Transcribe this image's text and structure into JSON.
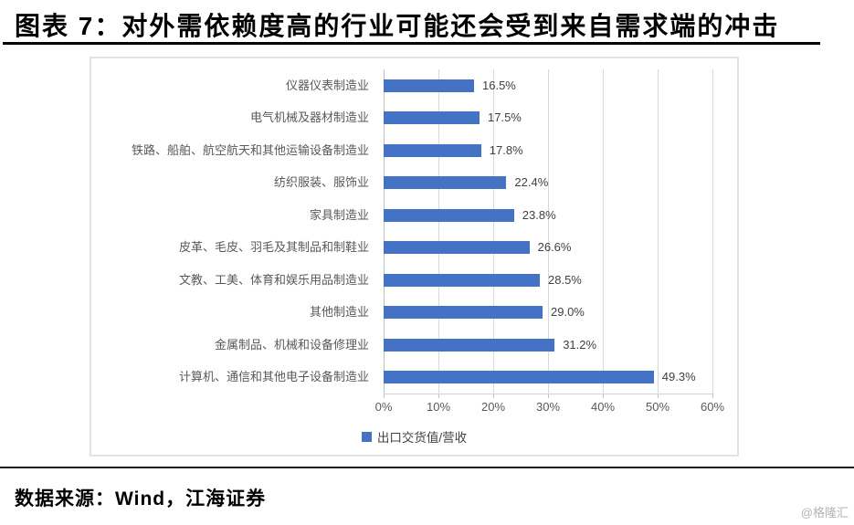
{
  "header": {
    "title": "图表 7：对外需依赖度高的行业可能还会受到来自需求端的冲击"
  },
  "chart_data": {
    "type": "bar",
    "orientation": "horizontal",
    "categories": [
      "仪器仪表制造业",
      "电气机械及器材制造业",
      "铁路、船舶、航空航天和其他运输设备制造业",
      "纺织服装、服饰业",
      "家具制造业",
      "皮革、毛皮、羽毛及其制品和制鞋业",
      "文教、工美、体育和娱乐用品制造业",
      "其他制造业",
      "金属制品、机械和设备修理业",
      "计算机、通信和其他电子设备制造业"
    ],
    "values": [
      16.5,
      17.5,
      17.8,
      22.4,
      23.8,
      26.6,
      28.5,
      29.0,
      31.2,
      49.3
    ],
    "value_labels": [
      "16.5%",
      "17.5%",
      "17.8%",
      "22.4%",
      "23.8%",
      "26.6%",
      "28.5%",
      "29.0%",
      "31.2%",
      "49.3%"
    ],
    "series_name": "出口交货值/营收",
    "x_ticks": [
      "0%",
      "10%",
      "20%",
      "30%",
      "40%",
      "50%",
      "60%"
    ],
    "xlim": [
      0,
      60
    ],
    "grid": true,
    "legend_position": "bottom-center",
    "colors": {
      "bar": "#4472c4",
      "gridline": "#d9d9d9",
      "axis": "#bfbfbf",
      "category_label": "#595959",
      "value_label": "#404040"
    }
  },
  "footer": {
    "source": "数据来源：Wind，江海证券",
    "watermark": "@格隆汇"
  }
}
